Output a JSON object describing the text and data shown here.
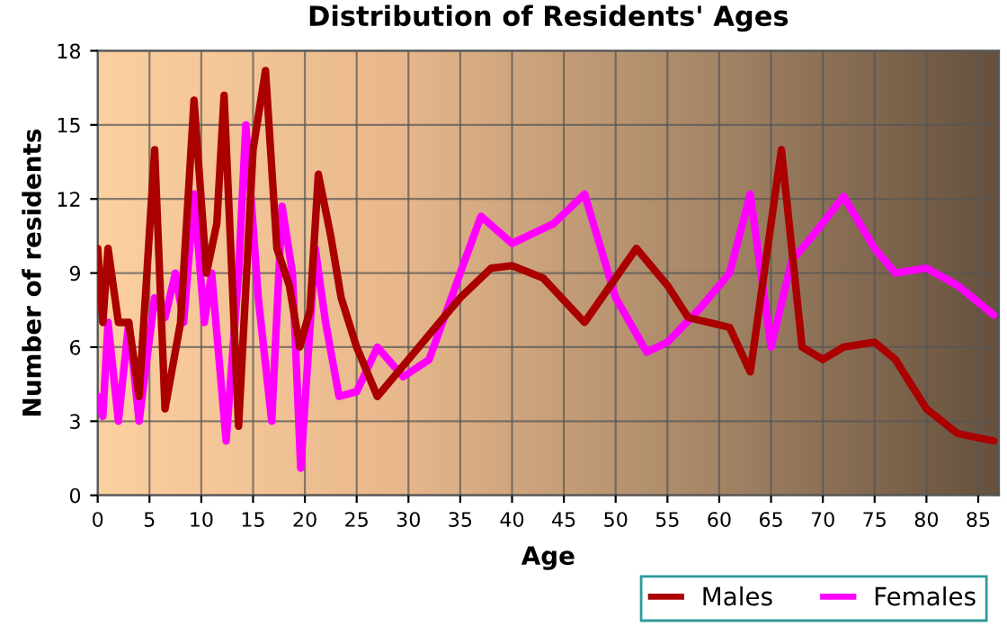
{
  "chart_data": {
    "type": "line",
    "title": "Distribution of Residents' Ages",
    "xlabel": "Age",
    "ylabel": "Number of residents",
    "xlim": [
      0,
      87
    ],
    "xticks": [
      0,
      5,
      10,
      15,
      20,
      25,
      30,
      35,
      40,
      45,
      50,
      55,
      60,
      65,
      70,
      75,
      80,
      85
    ],
    "ylim": [
      0,
      18
    ],
    "yticks": [
      0,
      3,
      6,
      9,
      12,
      15,
      18
    ],
    "grid": true,
    "legend": "bottom right",
    "line_style": "solid",
    "marker": "none",
    "series": [
      {
        "name": "Males",
        "color": "#aa0000",
        "x": [
          0,
          0.5,
          1,
          2,
          3,
          4,
          5.5,
          6.5,
          8,
          9.3,
          10.5,
          11.5,
          12.2,
          13.6,
          15,
          16.2,
          17.3,
          18.5,
          19.5,
          20.5,
          21.3,
          22.5,
          23.5,
          25,
          27,
          30,
          35,
          38,
          40,
          43,
          47,
          52,
          55,
          57,
          59,
          61,
          63,
          66,
          68,
          70,
          72,
          75,
          77,
          80,
          83,
          86.5
        ],
        "values": [
          10,
          7,
          10,
          7,
          7,
          4,
          14,
          3.5,
          7,
          16,
          9,
          11,
          16.2,
          2.8,
          14,
          17.2,
          10,
          8.5,
          6,
          7.5,
          13,
          10.5,
          8,
          6,
          4,
          5.5,
          8,
          9.2,
          9.3,
          8.8,
          7,
          10,
          8.5,
          7.2,
          7,
          6.8,
          5,
          14,
          6,
          5.5,
          6,
          6.2,
          5.5,
          3.5,
          2.5,
          2.2
        ]
      },
      {
        "name": "Females",
        "color": "#ff00ff",
        "x": [
          0,
          0.5,
          1,
          2,
          3,
          4,
          5.5,
          6.5,
          7.5,
          8.3,
          9.3,
          10.3,
          11,
          12.4,
          13.6,
          14.3,
          15.5,
          16.8,
          17.8,
          18.8,
          19.6,
          21,
          22,
          23.3,
          25,
          27,
          29.5,
          32,
          35,
          37,
          40,
          44,
          47,
          50,
          53,
          55,
          58,
          61,
          63,
          65,
          67,
          69,
          72,
          75,
          77,
          80,
          83,
          86.5
        ],
        "values": [
          4,
          3.2,
          7,
          3,
          7,
          3,
          8,
          7.2,
          9,
          7,
          12.2,
          7,
          9,
          2.2,
          9,
          15,
          8,
          3,
          11.7,
          9,
          1.1,
          10,
          7,
          4,
          4.2,
          6,
          4.8,
          5.5,
          9,
          11.3,
          10.2,
          11,
          12.2,
          8,
          5.8,
          6.2,
          7.5,
          9,
          12.2,
          6,
          9.5,
          10.5,
          12.1,
          10,
          9,
          9.2,
          8.5,
          7.3
        ]
      }
    ]
  }
}
